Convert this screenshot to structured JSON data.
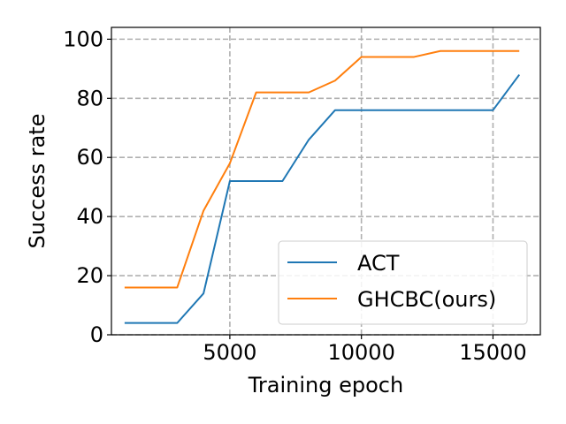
{
  "chart_data": {
    "type": "line",
    "xlabel": "Training epoch",
    "ylabel": "Success rate",
    "xlim": [
      500,
      16800
    ],
    "ylim": [
      0,
      104
    ],
    "xticks": [
      5000,
      10000,
      15000
    ],
    "yticks": [
      0,
      20,
      40,
      60,
      80,
      100
    ],
    "grid": true,
    "legend_position": "lower-right",
    "series": [
      {
        "name": "ACT",
        "color": "#1f77b4",
        "x": [
          1000,
          2000,
          3000,
          4000,
          5000,
          6000,
          7000,
          8000,
          9000,
          10000,
          11000,
          12000,
          13000,
          14000,
          15000,
          16000
        ],
        "y": [
          4,
          4,
          4,
          14,
          52,
          52,
          52,
          66,
          76,
          76,
          76,
          76,
          76,
          76,
          76,
          88
        ]
      },
      {
        "name": "GHCBC(ours)",
        "color": "#ff7f0e",
        "x": [
          1000,
          2000,
          3000,
          4000,
          5000,
          6000,
          7000,
          8000,
          9000,
          10000,
          11000,
          12000,
          13000,
          14000,
          15000,
          16000
        ],
        "y": [
          16,
          16,
          16,
          42,
          58,
          82,
          82,
          82,
          86,
          94,
          94,
          94,
          96,
          96,
          96,
          96
        ]
      }
    ]
  }
}
